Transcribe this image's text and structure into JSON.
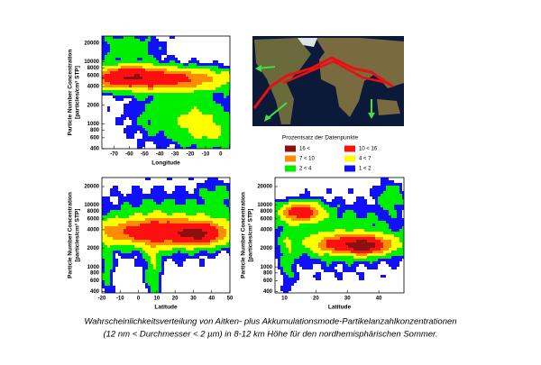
{
  "chart_data": [
    {
      "type": "contour",
      "x_label": "Longitude",
      "y_label": [
        "Particle Number Concentration",
        "[particles/cm³ STP]"
      ],
      "xlim": [
        -78,
        6
      ],
      "xticks": [
        -70,
        -60,
        -50,
        -40,
        -30,
        -20,
        -10,
        0
      ],
      "ylim": [
        400,
        26000
      ],
      "yticks": [
        400,
        600,
        800,
        1000,
        2000,
        4000,
        6000,
        8000,
        10000,
        20000
      ],
      "log_y": true
    },
    {
      "type": "contour",
      "x_label": "Latitude",
      "y_label": [
        "Particle Number Concentration",
        "[particles/cm³ STP]"
      ],
      "xlim": [
        -20,
        50
      ],
      "xticks": [
        -20,
        -10,
        0,
        10,
        20,
        30,
        40,
        50
      ],
      "ylim": [
        380,
        28000
      ],
      "yticks": [
        400,
        600,
        800,
        1000,
        2000,
        4000,
        6000,
        8000,
        10000,
        20000
      ],
      "log_y": true
    },
    {
      "type": "contour",
      "x_label": "Latitude",
      "y_label": [
        "Particle Number Concentration",
        "[particles/cm³ STP]"
      ],
      "xlim": [
        7,
        48
      ],
      "xticks": [
        10,
        20,
        30,
        40
      ],
      "ylim": [
        380,
        28000
      ],
      "yticks": [
        400,
        600,
        800,
        1000,
        2000,
        4000,
        6000,
        8000,
        10000,
        20000
      ],
      "log_y": true
    }
  ],
  "legend": {
    "title": "Prozentsatz der Datenpunkte",
    "entries": [
      {
        "label": "16 <",
        "color": "#8b1010"
      },
      {
        "label": "10 < 16",
        "color": "#ff1010"
      },
      {
        "label": "7 < 10",
        "color": "#ff8c00"
      },
      {
        "label": "4 < 7",
        "color": "#ffff00"
      },
      {
        "label": "2 < 4",
        "color": "#00ee00"
      },
      {
        "label": "1 < 2",
        "color": "#1010ff"
      }
    ]
  },
  "caption": [
    "Wahrscheinlichkeitsverteilung von Aitken- plus Akkumulationsmode-Partikelanzahlkonzentrationen",
    "(12 nm < Durchmesser < 2 µm) in 8-12 km Höhe für den nordhemisphärischen Sommer."
  ]
}
